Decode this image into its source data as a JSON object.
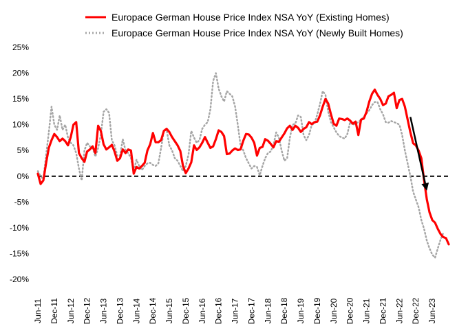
{
  "chart_data": {
    "type": "line",
    "title": "",
    "xlabel": "",
    "ylabel": "",
    "ylim": [
      -20,
      25
    ],
    "yticks": [
      25,
      20,
      15,
      10,
      5,
      0,
      -5,
      -10,
      -15,
      -20
    ],
    "ytick_labels": [
      "25%",
      "20%",
      "15%",
      "10%",
      "5%",
      "0%",
      "-5%",
      "-10%",
      "-15%",
      "-20%"
    ],
    "x_range": [
      "Jun-11",
      "Jun-23"
    ],
    "xtick_labels": [
      "Jun-11",
      "Dec-11",
      "Jun-12",
      "Dec-12",
      "Jun-13",
      "Dec-13",
      "Jun-14",
      "Dec-14",
      "Jun-15",
      "Dec-15",
      "Jun-16",
      "Dec-16",
      "Jun-17",
      "Dec-17",
      "Jun-18",
      "Dec-18",
      "Jun-19",
      "Dec-19",
      "Jun-20",
      "Dec-20",
      "Jun-21",
      "Dec-21",
      "Jun-22",
      "Dec-22",
      "Jun-23"
    ],
    "series": [
      {
        "name": "Europace German House Price Index NSA YoY (Existing Homes)",
        "color": "#ff0000",
        "style": "solid",
        "values": [
          0.5,
          -1.5,
          -0.8,
          2.5,
          5.5,
          7.0,
          8.2,
          7.6,
          6.8,
          7.3,
          6.8,
          6.0,
          7.6,
          10.0,
          10.5,
          4.5,
          3.5,
          2.8,
          4.8,
          5.2,
          5.8,
          4.5,
          9.8,
          8.8,
          6.2,
          5.2,
          5.6,
          6.1,
          4.8,
          3.0,
          3.5,
          5.2,
          4.5,
          5.2,
          5.0,
          0.5,
          1.8,
          1.5,
          2.0,
          2.6,
          5.0,
          6.2,
          8.4,
          6.6,
          6.6,
          7.0,
          8.8,
          9.2,
          8.6,
          7.6,
          6.8,
          6.0,
          4.9,
          2.0,
          0.6,
          1.5,
          2.7,
          6.0,
          5.1,
          5.6,
          6.5,
          7.6,
          6.5,
          5.5,
          5.8,
          7.2,
          8.9,
          8.6,
          7.8,
          4.3,
          4.4,
          5.0,
          5.4,
          5.1,
          5.2,
          6.9,
          8.2,
          8.1,
          7.5,
          6.5,
          4.0,
          5.5,
          5.7,
          7.2,
          6.9,
          6.3,
          5.6,
          6.8,
          6.7,
          7.5,
          8.3,
          9.3,
          9.8,
          9.0,
          9.8,
          9.4,
          8.6,
          9.2,
          9.5,
          10.5,
          10.1,
          10.5,
          10.6,
          11.8,
          13.5,
          15.0,
          14.1,
          12.0,
          10.2,
          9.8,
          11.2,
          11.1,
          10.9,
          11.2,
          10.8,
          10.2,
          10.6,
          8.0,
          11.0,
          11.2,
          12.5,
          14.5,
          16.0,
          16.8,
          15.8,
          15.0,
          13.8,
          14.1,
          15.5,
          15.8,
          16.2,
          13.2,
          14.8,
          15.0,
          13.5,
          11.0,
          8.5,
          6.4,
          6.0,
          5.0,
          3.5,
          -0.8,
          -4.5,
          -7.0,
          -8.5,
          -9.0,
          -10.2,
          -11.2,
          -11.8,
          -12.0,
          -13.2
        ]
      },
      {
        "name": "Europace German House Price Index NSA YoY (Newly Built Homes)",
        "color": "#a6a6a6",
        "style": "dotted",
        "values": [
          1.0,
          0.0,
          -0.6,
          4.0,
          8.5,
          13.5,
          10.0,
          9.0,
          11.8,
          9.0,
          10.0,
          7.5,
          6.5,
          6.0,
          4.5,
          1.5,
          -0.8,
          5.0,
          6.5,
          5.8,
          5.5,
          3.8,
          5.5,
          8.0,
          12.5,
          13.0,
          12.3,
          7.0,
          6.0,
          4.0,
          4.0,
          7.2,
          5.0,
          4.5,
          3.5,
          1.0,
          3.2,
          2.0,
          1.2,
          2.0,
          2.5,
          2.6,
          2.2,
          2.0,
          2.5,
          5.5,
          8.8,
          9.0,
          6.0,
          5.0,
          3.5,
          3.0,
          2.0,
          1.0,
          2.0,
          4.2,
          8.8,
          7.5,
          6.5,
          7.0,
          9.2,
          10.0,
          10.5,
          13.0,
          18.5,
          20.0,
          17.0,
          15.5,
          14.5,
          16.5,
          16.0,
          15.5,
          13.5,
          10.0,
          6.0,
          5.0,
          3.5,
          2.5,
          1.5,
          2.0,
          1.8,
          0.2,
          2.0,
          3.5,
          4.5,
          4.8,
          6.0,
          8.5,
          7.5,
          5.0,
          3.0,
          3.5,
          7.5,
          10.0,
          10.2,
          11.8,
          11.5,
          8.0,
          7.0,
          8.0,
          10.0,
          10.2,
          12.0,
          14.0,
          16.5,
          15.8,
          12.5,
          10.5,
          9.5,
          8.5,
          7.8,
          7.5,
          7.3,
          8.2,
          10.5,
          10.0,
          10.2,
          10.5,
          11.0,
          11.5,
          12.2,
          12.8,
          13.8,
          14.4,
          14.4,
          13.0,
          12.0,
          10.5,
          10.4,
          10.7,
          10.5,
          10.3,
          10.0,
          8.0,
          5.0,
          2.5,
          0.0,
          -3.0,
          -4.5,
          -6.0,
          -8.5,
          -10.2,
          -12.5,
          -14.0,
          -15.2,
          -15.8,
          -14.0,
          -12.3,
          -11.0
        ]
      }
    ],
    "reference_line": {
      "y": 0,
      "style": "dashed",
      "color": "#000000"
    },
    "annotations": [
      {
        "type": "arrow",
        "from": {
          "date": "Oct-22",
          "y": 11.5
        },
        "to": {
          "date": "Apr-23",
          "y": -2.8
        },
        "color": "#000000"
      }
    ],
    "legend": "top"
  }
}
